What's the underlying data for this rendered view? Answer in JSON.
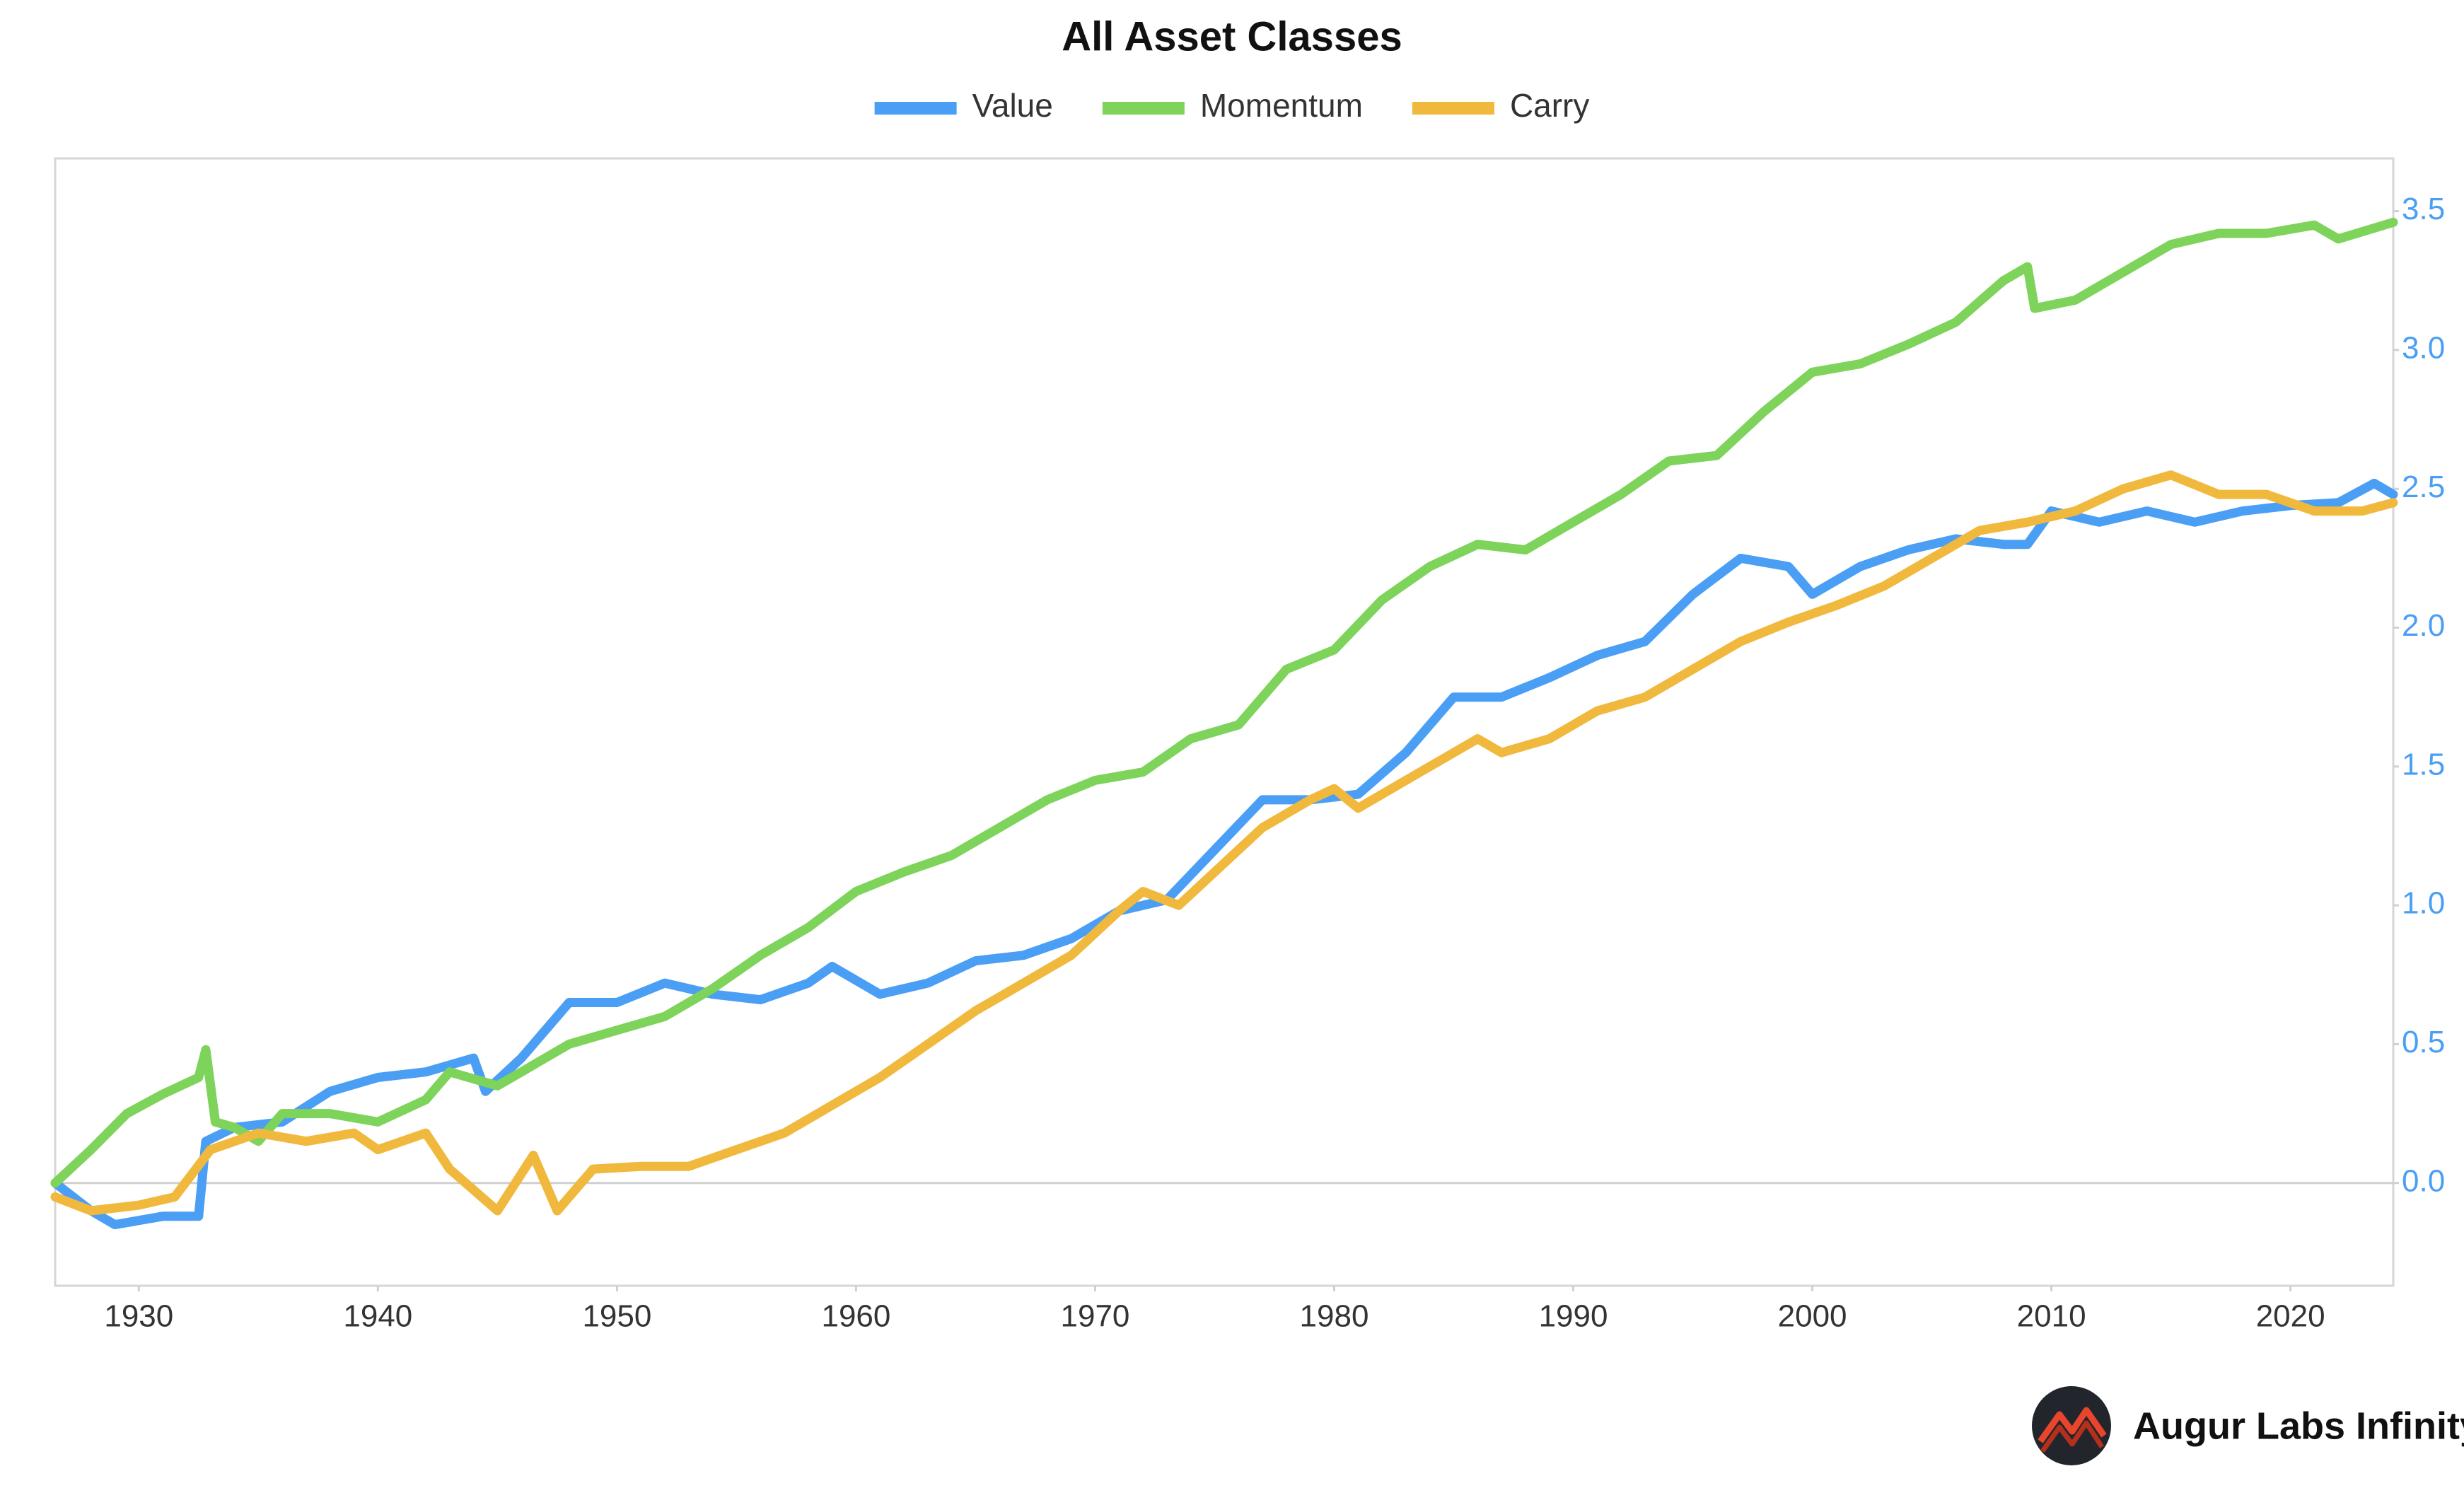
{
  "chart_data": {
    "type": "line",
    "title": "All Asset Classes",
    "xlim": [
      1926.5,
      2024.3
    ],
    "xticks": [
      1930,
      1940,
      1950,
      1960,
      1970,
      1980,
      1990,
      2000,
      2010,
      2020
    ],
    "ylim": [
      -0.37,
      3.69
    ],
    "yticks": [
      0,
      0.5,
      1,
      1.5,
      2,
      2.5,
      3,
      3.5
    ],
    "yticks_labels_fixed": 1,
    "y_axis_side": "right",
    "tick_label_color": "#4a9ff5",
    "legend": "top",
    "series": [
      {
        "name": "Value",
        "color": "#4a9ff5",
        "x": [
          1926.5,
          1928,
          1929,
          1931,
          1932.5,
          1932.8,
          1934,
          1936,
          1938,
          1940,
          1942,
          1944,
          1944.5,
          1946,
          1948,
          1950,
          1952,
          1954,
          1956,
          1958,
          1959,
          1961,
          1963,
          1965,
          1967,
          1969,
          1971,
          1973,
          1975,
          1977,
          1979,
          1981,
          1983,
          1985,
          1987,
          1989,
          1991,
          1993,
          1995,
          1997,
          1999,
          2000,
          2002,
          2004,
          2006,
          2008,
          2009,
          2010,
          2012,
          2014,
          2016,
          2018,
          2020,
          2022,
          2023.5,
          2024.3
        ],
        "values": [
          0.0,
          -0.1,
          -0.15,
          -0.12,
          -0.12,
          0.15,
          0.2,
          0.22,
          0.33,
          0.38,
          0.4,
          0.45,
          0.33,
          0.45,
          0.65,
          0.65,
          0.72,
          0.68,
          0.66,
          0.72,
          0.78,
          0.68,
          0.72,
          0.8,
          0.82,
          0.88,
          0.98,
          1.02,
          1.2,
          1.38,
          1.38,
          1.4,
          1.55,
          1.75,
          1.75,
          1.82,
          1.9,
          1.95,
          2.12,
          2.25,
          2.22,
          2.12,
          2.22,
          2.28,
          2.32,
          2.3,
          2.3,
          2.42,
          2.38,
          2.42,
          2.38,
          2.42,
          2.44,
          2.45,
          2.52,
          2.48
        ]
      },
      {
        "name": "Momentum",
        "color": "#7ed35a",
        "x": [
          1926.5,
          1928,
          1929.5,
          1931,
          1932.5,
          1932.8,
          1933.2,
          1934,
          1935,
          1936,
          1938,
          1940,
          1942,
          1943,
          1945,
          1946,
          1948,
          1950,
          1952,
          1954,
          1956,
          1958,
          1960,
          1962,
          1964,
          1966,
          1968,
          1970,
          1972,
          1974,
          1976,
          1978,
          1980,
          1982,
          1984,
          1986,
          1988,
          1990,
          1992,
          1994,
          1996,
          1998,
          2000,
          2002,
          2004,
          2006,
          2008,
          2009,
          2009.3,
          2011,
          2013,
          2015,
          2017,
          2019,
          2021,
          2022,
          2024.3
        ],
        "values": [
          0.0,
          0.12,
          0.25,
          0.32,
          0.38,
          0.48,
          0.22,
          0.2,
          0.15,
          0.25,
          0.25,
          0.22,
          0.3,
          0.4,
          0.35,
          0.4,
          0.5,
          0.55,
          0.6,
          0.7,
          0.82,
          0.92,
          1.05,
          1.12,
          1.18,
          1.28,
          1.38,
          1.45,
          1.48,
          1.6,
          1.65,
          1.85,
          1.92,
          2.1,
          2.22,
          2.3,
          2.28,
          2.38,
          2.48,
          2.6,
          2.62,
          2.78,
          2.92,
          2.95,
          3.02,
          3.1,
          3.25,
          3.3,
          3.15,
          3.18,
          3.28,
          3.38,
          3.42,
          3.42,
          3.45,
          3.4,
          3.46
        ]
      },
      {
        "name": "Carry",
        "color": "#f0b93e",
        "x": [
          1926.5,
          1928,
          1930,
          1931.5,
          1933,
          1935,
          1937,
          1939,
          1940,
          1942,
          1943,
          1945,
          1946.5,
          1947.5,
          1949,
          1951,
          1953,
          1955,
          1957,
          1959,
          1961,
          1963,
          1965,
          1967,
          1969,
          1971,
          1972,
          1973.5,
          1975,
          1977,
          1979,
          1980,
          1981,
          1983,
          1985,
          1986,
          1987,
          1989,
          1991,
          1993,
          1995,
          1997,
          1999,
          2001,
          2003,
          2005,
          2007,
          2009,
          2011,
          2013,
          2015,
          2017,
          2019,
          2021,
          2023,
          2024.3
        ],
        "values": [
          -0.05,
          -0.1,
          -0.08,
          -0.05,
          0.12,
          0.18,
          0.15,
          0.18,
          0.12,
          0.18,
          0.05,
          -0.1,
          0.1,
          -0.1,
          0.05,
          0.06,
          0.06,
          0.12,
          0.18,
          0.28,
          0.38,
          0.5,
          0.62,
          0.72,
          0.82,
          0.98,
          1.05,
          1.0,
          1.12,
          1.28,
          1.38,
          1.42,
          1.35,
          1.45,
          1.55,
          1.6,
          1.55,
          1.6,
          1.7,
          1.75,
          1.85,
          1.95,
          2.02,
          2.08,
          2.15,
          2.25,
          2.35,
          2.38,
          2.42,
          2.5,
          2.55,
          2.48,
          2.48,
          2.42,
          2.42,
          2.45
        ]
      }
    ]
  },
  "brand": "Augur Labs Infinity"
}
